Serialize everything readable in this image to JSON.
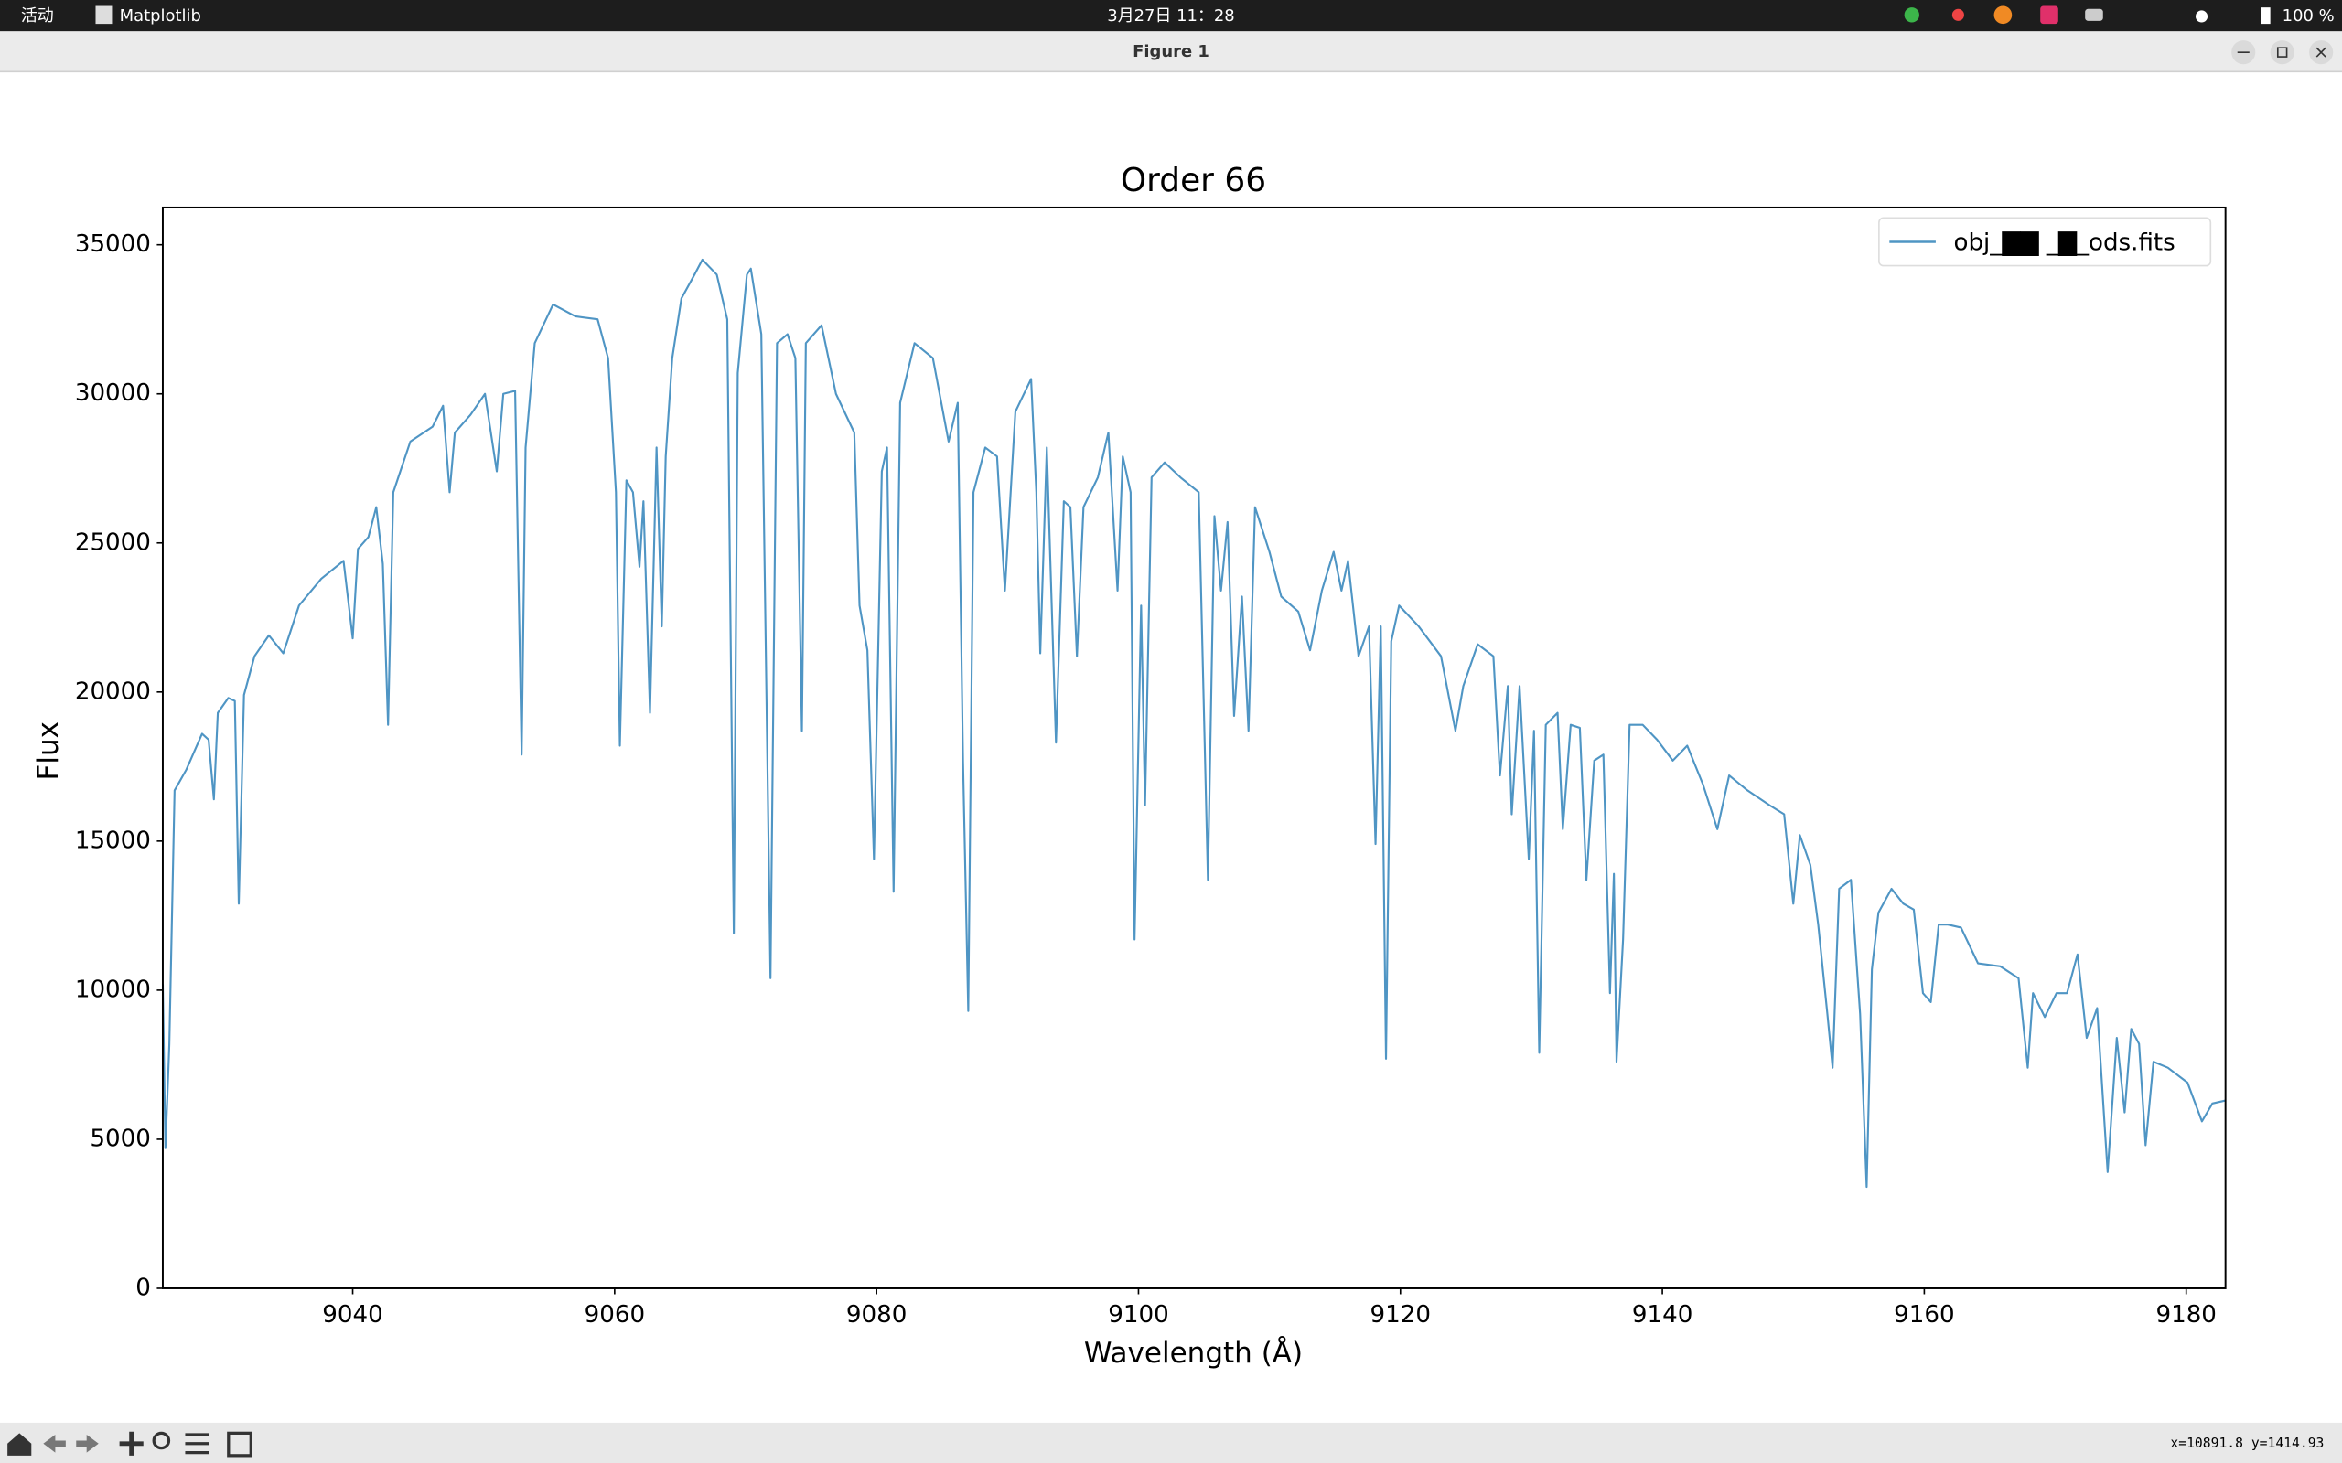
{
  "topbar": {
    "activities": "活动",
    "app": "Matplotlib",
    "clock": "3月27日 11：28",
    "battery": "100 %"
  },
  "window": {
    "title": "Figure 1"
  },
  "chart_data": {
    "type": "line",
    "title": "Order 66",
    "x_label": "Wavelength (Å)",
    "y_label": "Flux",
    "x": [
      9025.5,
      9025.7,
      9026.0,
      9026.4,
      9027.3,
      9028.5,
      9029.0,
      9029.4,
      9029.7,
      9030.5,
      9031.0,
      9031.3,
      9031.7,
      9032.5,
      9033.6,
      9034.7,
      9035.9,
      9037.6,
      9039.3,
      9040.0,
      9040.4,
      9041.2,
      9041.8,
      9042.3,
      9042.7,
      9043.1,
      9044.4,
      9046.1,
      9046.9,
      9047.4,
      9047.8,
      9049.0,
      9050.1,
      9051.0,
      9051.5,
      9052.4,
      9052.9,
      9053.2,
      9053.9,
      9055.3,
      9057.0,
      9058.7,
      9059.5,
      9060.1,
      9060.4,
      9060.9,
      9061.4,
      9061.9,
      9062.2,
      9062.7,
      9063.2,
      9063.6,
      9063.9,
      9064.4,
      9065.1,
      9066.1,
      9066.7,
      9067.8,
      9068.6,
      9069.1,
      9069.4,
      9070.1,
      9070.4,
      9071.2,
      9071.9,
      9072.4,
      9073.2,
      9073.8,
      9074.3,
      9074.6,
      9075.8,
      9076.9,
      9078.3,
      9078.7,
      9079.3,
      9079.8,
      9080.4,
      9080.8,
      9081.3,
      9081.8,
      9082.9,
      9084.3,
      9085.5,
      9086.2,
      9086.6,
      9087.0,
      9087.4,
      9088.3,
      9089.2,
      9089.8,
      9090.6,
      9091.8,
      9092.2,
      9092.5,
      9093.0,
      9093.7,
      9094.3,
      9094.8,
      9095.3,
      9095.8,
      9096.9,
      9097.7,
      9098.4,
      9098.8,
      9099.4,
      9099.7,
      9100.2,
      9100.5,
      9101.0,
      9102.0,
      9103.2,
      9104.6,
      9105.3,
      9105.8,
      9106.3,
      9106.8,
      9107.3,
      9107.9,
      9108.4,
      9108.9,
      9110.0,
      9110.9,
      9112.2,
      9113.1,
      9114.0,
      9114.9,
      9115.5,
      9116.0,
      9116.8,
      9117.6,
      9118.1,
      9118.5,
      9118.9,
      9119.3,
      9119.9,
      9121.4,
      9123.1,
      9124.2,
      9124.8,
      9125.9,
      9127.1,
      9127.6,
      9128.2,
      9128.5,
      9129.1,
      9129.8,
      9130.2,
      9130.6,
      9131.1,
      9132.0,
      9132.4,
      9133.0,
      9133.7,
      9134.2,
      9134.8,
      9135.5,
      9136.0,
      9136.3,
      9136.5,
      9137.0,
      9137.5,
      9138.5,
      9139.6,
      9140.8,
      9141.9,
      9143.1,
      9144.2,
      9145.1,
      9146.5,
      9148.2,
      9149.3,
      9150.0,
      9150.5,
      9151.3,
      9151.9,
      9152.6,
      9153.0,
      9153.5,
      9154.4,
      9155.1,
      9155.6,
      9156.0,
      9156.5,
      9157.5,
      9158.4,
      9159.2,
      9159.9,
      9160.5,
      9161.1,
      9161.8,
      9162.8,
      9164.1,
      9165.8,
      9167.2,
      9167.9,
      9168.3,
      9169.2,
      9170.1,
      9170.9,
      9171.7,
      9172.4,
      9173.2,
      9174.0,
      9174.7,
      9175.3,
      9175.8,
      9176.4,
      9176.9,
      9177.5,
      9178.6,
      9180.1,
      9181.2,
      9182.0,
      9183.0
    ],
    "series": [
      {
        "name": "obj_▇▇ _▇_ods.fits",
        "color": "#4f95c4",
        "values": [
          10200,
          4700,
          8200,
          16700,
          17400,
          18600,
          18400,
          16400,
          19300,
          19800,
          19700,
          12900,
          19900,
          21200,
          21900,
          21300,
          22900,
          23800,
          24400,
          21800,
          24800,
          25200,
          26200,
          24300,
          18900,
          26700,
          28400,
          28900,
          29600,
          26700,
          28700,
          29300,
          30000,
          27400,
          30000,
          30100,
          17900,
          28200,
          31700,
          33000,
          32600,
          32500,
          31200,
          26700,
          18200,
          27100,
          26700,
          24200,
          26400,
          19300,
          28200,
          22200,
          27900,
          31200,
          33200,
          34000,
          34500,
          34000,
          32500,
          11900,
          30700,
          34000,
          34200,
          32000,
          10400,
          31700,
          32000,
          31200,
          18700,
          31700,
          32300,
          30000,
          28700,
          22900,
          21400,
          14400,
          27400,
          28200,
          13300,
          29700,
          31700,
          31200,
          28400,
          29700,
          17700,
          9300,
          26700,
          28200,
          27900,
          23400,
          29400,
          30500,
          26700,
          21300,
          28200,
          18300,
          26400,
          26200,
          21200,
          26200,
          27200,
          28700,
          23400,
          27900,
          26700,
          11700,
          22900,
          16200,
          27200,
          27700,
          27200,
          26700,
          13700,
          25900,
          23400,
          25700,
          19200,
          23200,
          18700,
          26200,
          24700,
          23200,
          22700,
          21400,
          23400,
          24700,
          23400,
          24400,
          21200,
          22200,
          14900,
          22200,
          7700,
          21700,
          22900,
          22200,
          21200,
          18700,
          20200,
          21600,
          21200,
          17200,
          20200,
          15900,
          20200,
          14400,
          18700,
          7900,
          18900,
          19300,
          15400,
          18900,
          18800,
          13700,
          17700,
          17900,
          9900,
          13900,
          7600,
          11700,
          18900,
          18900,
          18400,
          17700,
          18200,
          16900,
          15400,
          17200,
          16700,
          16200,
          15900,
          12900,
          15200,
          14200,
          12200,
          9200,
          7400,
          13400,
          13700,
          9200,
          3400,
          10700,
          12600,
          13400,
          12900,
          12700,
          9900,
          9600,
          12200,
          12200,
          12100,
          10900,
          10800,
          10400,
          7400,
          9900,
          9100,
          9900,
          9900,
          11200,
          8400,
          9400,
          3900,
          8400,
          5900,
          8700,
          8200,
          4800,
          7600,
          7400,
          6900,
          5600,
          6200,
          6300
        ]
      }
    ],
    "xlim": [
      9025.5,
      9183
    ],
    "ylim": [
      0,
      36250
    ],
    "xticks": [
      9040,
      9060,
      9080,
      9100,
      9120,
      9140,
      9160,
      9180
    ],
    "yticks": [
      0,
      5000,
      10000,
      15000,
      20000,
      25000,
      30000,
      35000
    ],
    "grid": false,
    "legend": "upper right"
  },
  "statusbar": {
    "coords": "x=10891.8 y=1414.93"
  }
}
